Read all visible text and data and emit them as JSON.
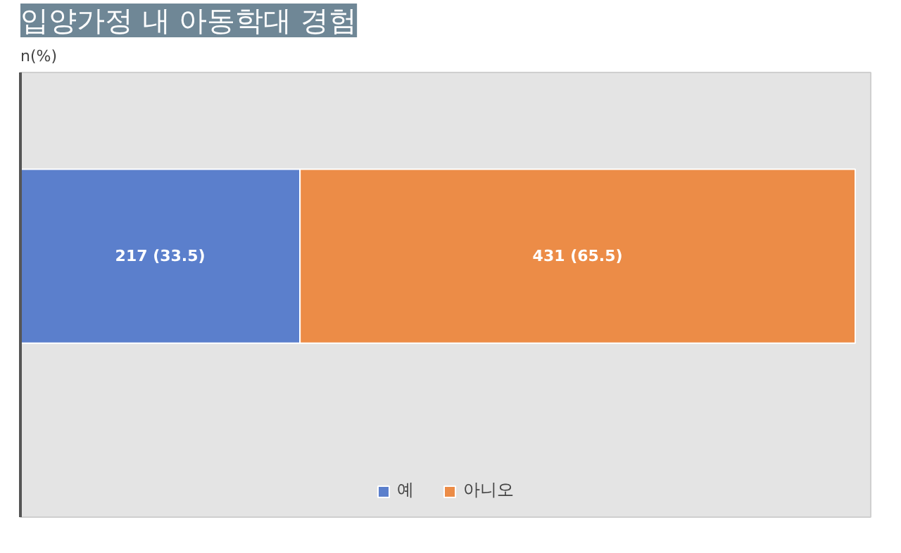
{
  "chart_data": {
    "type": "bar",
    "orientation": "horizontal",
    "stacked": true,
    "title": "입양가정 내 아동학대 경험",
    "ylabel": "n(%)",
    "categories": [
      null
    ],
    "xlim": [
      0,
      660
    ],
    "grid": false,
    "legend": "bottom",
    "series": [
      {
        "name": "예",
        "color": "#5b7fcc",
        "values": [
          217
        ],
        "value_labels": [
          "217 (33.5)"
        ]
      },
      {
        "name": "아니오",
        "color": "#ec8c47",
        "values": [
          431
        ],
        "value_labels": [
          "431 (65.5)"
        ]
      }
    ]
  }
}
